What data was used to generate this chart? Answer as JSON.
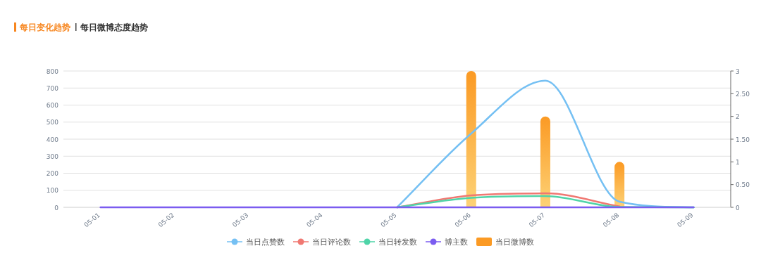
{
  "chart_data": {
    "type": "line",
    "title": "每日变化趋势",
    "subtitle": "每日微博态度趋势",
    "categories": [
      "05-01",
      "05-02",
      "05-03",
      "05-04",
      "05-05",
      "05-06",
      "05-07",
      "05-08",
      "05-09"
    ],
    "series": [
      {
        "name": "当日点赞数",
        "color": "#75c0f3",
        "values": [
          null,
          null,
          null,
          null,
          0,
          433,
          743,
          33,
          0
        ]
      },
      {
        "name": "当日评论数",
        "color": "#f07872",
        "values": [
          null,
          null,
          null,
          null,
          0,
          70,
          82,
          5,
          null
        ]
      },
      {
        "name": "当日转发数",
        "color": "#4fd4a8",
        "values": [
          null,
          null,
          null,
          null,
          0,
          56,
          66,
          2,
          0
        ]
      },
      {
        "name": "博主数",
        "color": "#7b5cf0",
        "values": [
          0,
          0,
          0,
          0,
          0,
          0,
          0,
          0,
          0
        ]
      },
      {
        "name": "当日微博数",
        "type": "bar",
        "axis": "y2",
        "color": "#fb9a24",
        "values": [
          0,
          0,
          0,
          0,
          0,
          3,
          2,
          1,
          0
        ]
      }
    ],
    "ylim": [
      0,
      800
    ],
    "yticks": [
      0,
      100,
      200,
      300,
      400,
      500,
      600,
      700,
      800
    ],
    "y2lim": [
      0,
      3
    ],
    "y2ticks": [
      0,
      {
        "value": 0.5,
        "label": "0.50"
      },
      1,
      {
        "value": 1.5,
        "label": "1.50"
      },
      2,
      {
        "value": 2.5,
        "label": "2.50"
      },
      3
    ],
    "grid": "y",
    "legend": "bottom",
    "marker": "none",
    "line_style": "solid"
  }
}
